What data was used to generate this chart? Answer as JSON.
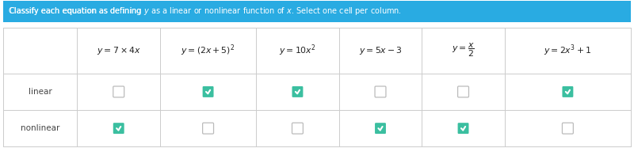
{
  "header_text": "Classify each equation as defining y as a linear or nonlinear function of x. Select one cell per column.",
  "header_bg": "#29ABE2",
  "header_text_color": "#FFFFFF",
  "table_bg": "#FFFFFF",
  "border_color": "#CCCCCC",
  "row_labels": [
    "linear",
    "nonlinear"
  ],
  "checked_color": "#3BBFA0",
  "check_color": "#FFFFFF",
  "unchecked_border": "#BBBBBB",
  "linear_checked": [
    false,
    true,
    true,
    false,
    false,
    true
  ],
  "nonlinear_checked": [
    true,
    false,
    false,
    true,
    true,
    false
  ],
  "figsize": [
    8.0,
    1.87
  ],
  "dpi": 100
}
